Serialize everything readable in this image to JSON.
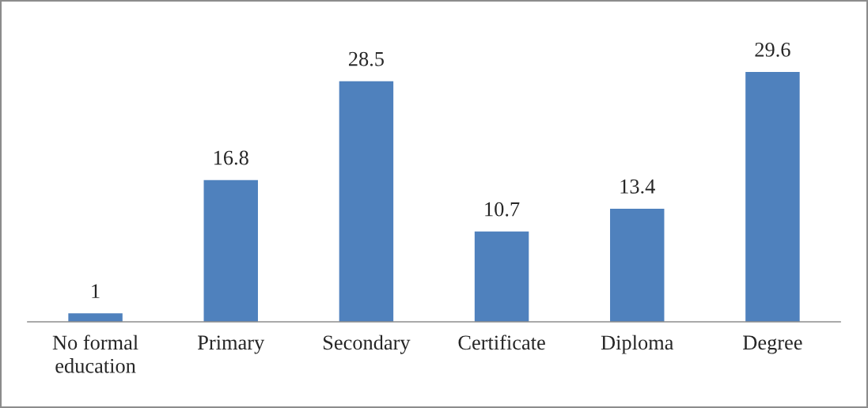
{
  "chart_data": {
    "type": "bar",
    "categories": [
      "No formal\neducation",
      "Primary",
      "Secondary",
      "Certificate",
      "Diploma",
      "Degree"
    ],
    "values": [
      1,
      16.8,
      28.5,
      10.7,
      13.4,
      29.6
    ],
    "color": "#4f81bd",
    "tick_labels": "x",
    "data_labels": true,
    "grid": false,
    "legend": false
  }
}
